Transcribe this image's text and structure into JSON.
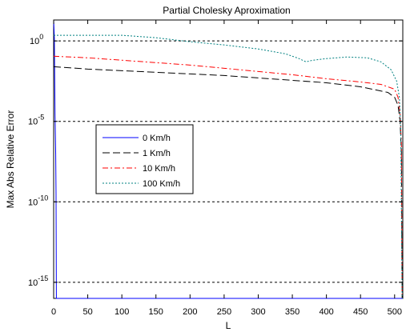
{
  "chart_data": {
    "type": "line",
    "title": "Partial Cholesky Aproximation",
    "xlabel": "L",
    "ylabel": "Max Abs Relative Error",
    "xlim": [
      0,
      512
    ],
    "ylim_exponents": [
      -16,
      1.3
    ],
    "yscale": "log",
    "x_ticks": [
      0,
      50,
      100,
      150,
      200,
      250,
      300,
      350,
      400,
      450,
      500
    ],
    "y_ticks": [
      {
        "base": "10",
        "exp": "0",
        "value": 1
      },
      {
        "base": "10",
        "exp": "-5",
        "value": 1e-05
      },
      {
        "base": "10",
        "exp": "-10",
        "value": 1e-10
      },
      {
        "base": "10",
        "exp": "-15",
        "value": 1e-15
      }
    ],
    "grid": "horizontal-dashed",
    "legend_position": "middle-left",
    "series": [
      {
        "name": "0 Km/h",
        "color": "#0000ff",
        "dash": "solid",
        "points": [
          [
            0,
            1.3
          ],
          [
            1,
            0.2
          ],
          [
            2,
            -4.5
          ],
          [
            3,
            -7.0
          ],
          [
            3.5,
            -9.5
          ],
          [
            4,
            -16.0
          ],
          [
            512,
            -16.0
          ]
        ]
      },
      {
        "name": "1 Km/h",
        "color": "#000000",
        "dash": "longdash",
        "points": [
          [
            0,
            -1.6
          ],
          [
            50,
            -1.75
          ],
          [
            100,
            -1.85
          ],
          [
            150,
            -1.95
          ],
          [
            200,
            -2.05
          ],
          [
            250,
            -2.15
          ],
          [
            300,
            -2.3
          ],
          [
            350,
            -2.45
          ],
          [
            400,
            -2.6
          ],
          [
            450,
            -2.85
          ],
          [
            490,
            -3.2
          ],
          [
            500,
            -3.5
          ],
          [
            505,
            -4.0
          ],
          [
            508,
            -5.0
          ],
          [
            510,
            -7.0
          ],
          [
            511,
            -16.0
          ]
        ]
      },
      {
        "name": "10 Km/h",
        "color": "#ff0000",
        "dash": "dashdot",
        "points": [
          [
            0,
            -0.95
          ],
          [
            50,
            -1.05
          ],
          [
            100,
            -1.2
          ],
          [
            150,
            -1.35
          ],
          [
            200,
            -1.5
          ],
          [
            250,
            -1.7
          ],
          [
            300,
            -1.9
          ],
          [
            350,
            -2.1
          ],
          [
            400,
            -2.35
          ],
          [
            450,
            -2.55
          ],
          [
            480,
            -2.7
          ],
          [
            500,
            -3.0
          ],
          [
            505,
            -3.5
          ],
          [
            508,
            -4.5
          ],
          [
            510,
            -6.5
          ],
          [
            511,
            -16.0
          ]
        ]
      },
      {
        "name": "100 Km/h",
        "color": "#008080",
        "dash": "dotted",
        "points": [
          [
            0,
            0.35
          ],
          [
            50,
            0.35
          ],
          [
            100,
            0.35
          ],
          [
            150,
            0.2
          ],
          [
            200,
            -0.05
          ],
          [
            250,
            -0.25
          ],
          [
            300,
            -0.5
          ],
          [
            340,
            -0.8
          ],
          [
            360,
            -1.1
          ],
          [
            370,
            -1.3
          ],
          [
            380,
            -1.2
          ],
          [
            400,
            -1.1
          ],
          [
            430,
            -1.0
          ],
          [
            460,
            -1.05
          ],
          [
            480,
            -1.3
          ],
          [
            495,
            -1.8
          ],
          [
            503,
            -2.5
          ],
          [
            507,
            -3.5
          ],
          [
            509,
            -5.5
          ],
          [
            511,
            -16.0
          ]
        ]
      }
    ]
  }
}
